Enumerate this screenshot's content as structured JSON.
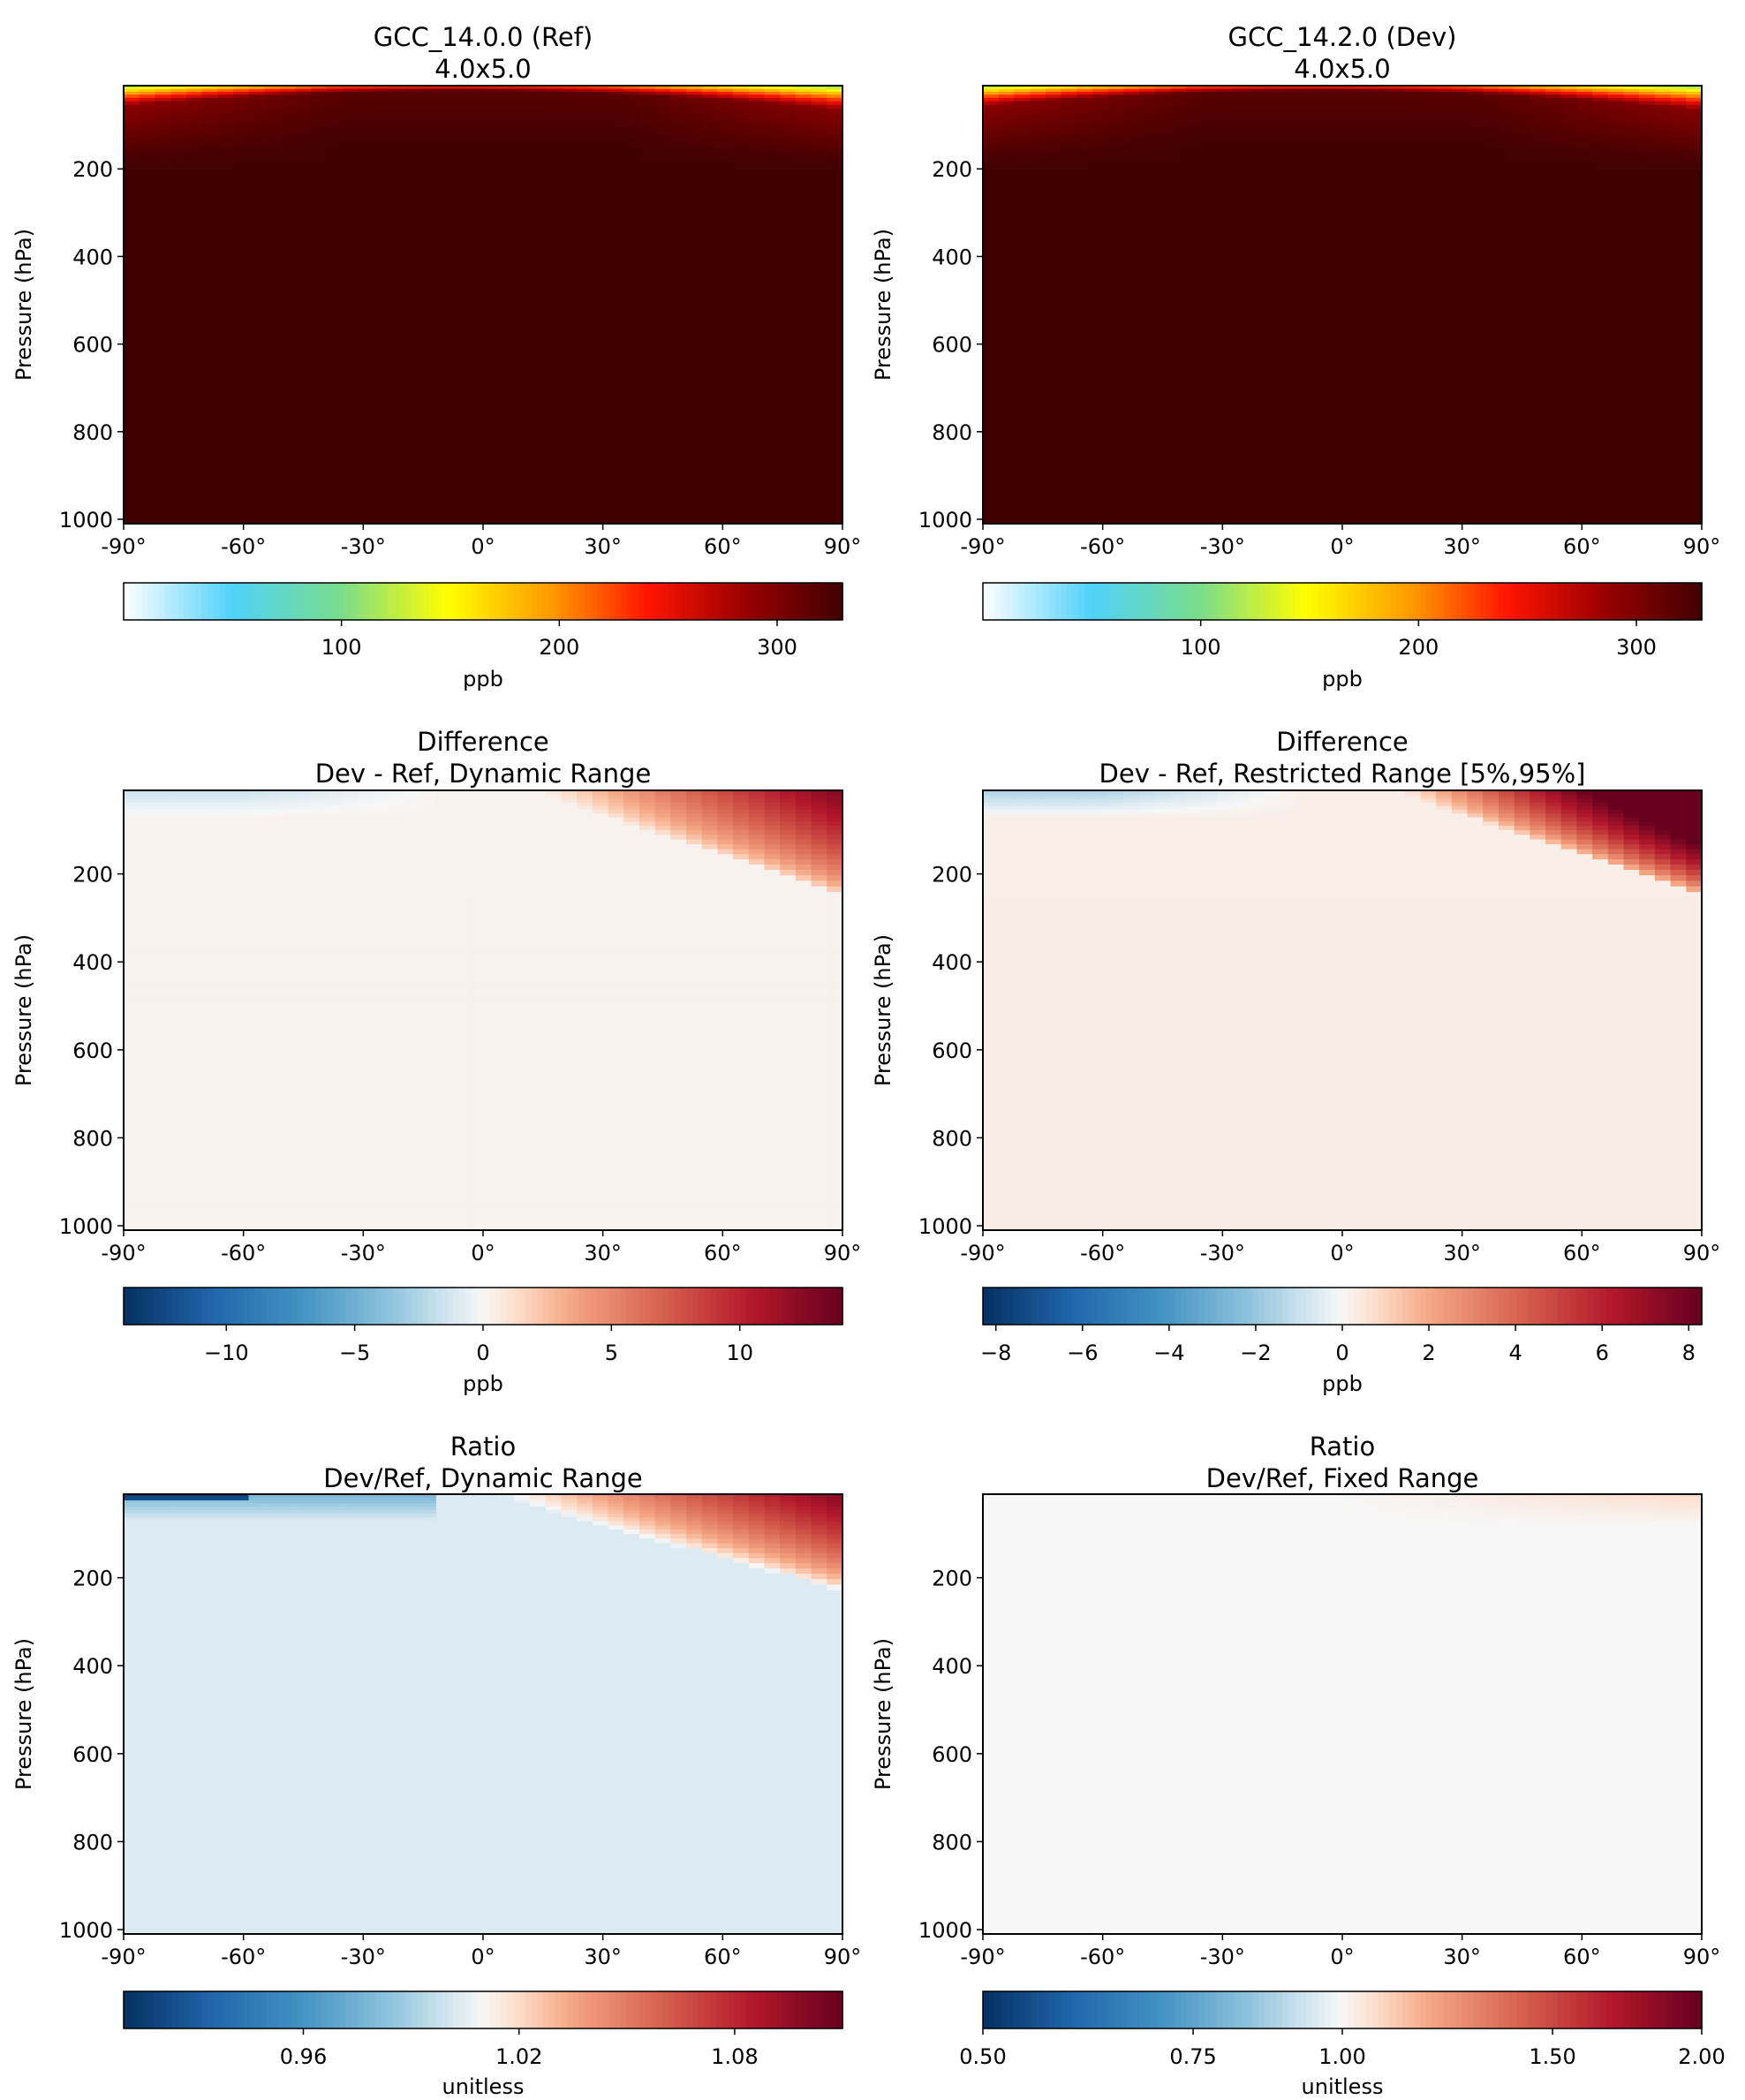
{
  "chart_data": [
    {
      "type": "heatmap",
      "title": "GCC_14.0.0 (Ref)",
      "subtitle": "4.0x5.0",
      "xlabel": "",
      "ylabel": "Pressure (hPa)",
      "x_ticks": [
        "-90°",
        "-60°",
        "-30°",
        "0°",
        "30°",
        "60°",
        "90°"
      ],
      "y_ticks": [
        "200",
        "400",
        "600",
        "800",
        "1000"
      ],
      "xlim": [
        -90,
        90
      ],
      "ylim": [
        1000,
        10
      ],
      "pattern": "conc",
      "colorbar": {
        "cmap": "wysiwyg",
        "label": "ppb",
        "range": [
          0,
          330
        ],
        "ticks": [
          {
            "value": 100,
            "label": "100"
          },
          {
            "value": 200,
            "label": "200"
          },
          {
            "value": 300,
            "label": "300"
          }
        ]
      }
    },
    {
      "type": "heatmap",
      "title": "GCC_14.2.0 (Dev)",
      "subtitle": "4.0x5.0",
      "xlabel": "",
      "ylabel": "Pressure (hPa)",
      "x_ticks": [
        "-90°",
        "-60°",
        "-30°",
        "0°",
        "30°",
        "60°",
        "90°"
      ],
      "y_ticks": [
        "200",
        "400",
        "600",
        "800",
        "1000"
      ],
      "xlim": [
        -90,
        90
      ],
      "ylim": [
        1000,
        10
      ],
      "pattern": "conc",
      "colorbar": {
        "cmap": "wysiwyg",
        "label": "ppb",
        "range": [
          0,
          330
        ],
        "ticks": [
          {
            "value": 100,
            "label": "100"
          },
          {
            "value": 200,
            "label": "200"
          },
          {
            "value": 300,
            "label": "300"
          }
        ]
      }
    },
    {
      "type": "heatmap",
      "title": "Difference",
      "subtitle": "Dev - Ref, Dynamic Range",
      "xlabel": "",
      "ylabel": "Pressure (hPa)",
      "x_ticks": [
        "-90°",
        "-60°",
        "-30°",
        "0°",
        "30°",
        "60°",
        "90°"
      ],
      "y_ticks": [
        "200",
        "400",
        "600",
        "800",
        "1000"
      ],
      "xlim": [
        -90,
        90
      ],
      "ylim": [
        1000,
        10
      ],
      "pattern": "diff",
      "colorbar": {
        "cmap": "RdBu_r",
        "label": "ppb",
        "range": [
          -14,
          14
        ],
        "ticks": [
          {
            "value": -10,
            "label": "−10"
          },
          {
            "value": -5,
            "label": "−5"
          },
          {
            "value": 0,
            "label": "0"
          },
          {
            "value": 5,
            "label": "5"
          },
          {
            "value": 10,
            "label": "10"
          }
        ]
      }
    },
    {
      "type": "heatmap",
      "title": "Difference",
      "subtitle": "Dev - Ref, Restricted Range [5%,95%]",
      "xlabel": "",
      "ylabel": "Pressure (hPa)",
      "x_ticks": [
        "-90°",
        "-60°",
        "-30°",
        "0°",
        "30°",
        "60°",
        "90°"
      ],
      "y_ticks": [
        "200",
        "400",
        "600",
        "800",
        "1000"
      ],
      "xlim": [
        -90,
        90
      ],
      "ylim": [
        1000,
        10
      ],
      "pattern": "diff_restricted",
      "colorbar": {
        "cmap": "RdBu_r",
        "label": "ppb",
        "range": [
          -8.3,
          8.3
        ],
        "ticks": [
          {
            "value": -8,
            "label": "−8"
          },
          {
            "value": -6,
            "label": "−6"
          },
          {
            "value": -4,
            "label": "−4"
          },
          {
            "value": -2,
            "label": "−2"
          },
          {
            "value": 0,
            "label": "0"
          },
          {
            "value": 2,
            "label": "2"
          },
          {
            "value": 4,
            "label": "4"
          },
          {
            "value": 6,
            "label": "6"
          },
          {
            "value": 8,
            "label": "8"
          }
        ]
      }
    },
    {
      "type": "heatmap",
      "title": "Ratio",
      "subtitle": "Dev/Ref, Dynamic Range",
      "xlabel": "",
      "ylabel": "Pressure (hPa)",
      "x_ticks": [
        "-90°",
        "-60°",
        "-30°",
        "0°",
        "30°",
        "60°",
        "90°"
      ],
      "y_ticks": [
        "200",
        "400",
        "600",
        "800",
        "1000"
      ],
      "xlim": [
        -90,
        90
      ],
      "ylim": [
        1000,
        10
      ],
      "pattern": "ratio",
      "colorbar": {
        "cmap": "RdBu_r",
        "label": "unitless",
        "range": [
          0.91,
          1.11
        ],
        "ticks": [
          {
            "value": 0.96,
            "label": "0.96"
          },
          {
            "value": 1.02,
            "label": "1.02"
          },
          {
            "value": 1.08,
            "label": "1.08"
          }
        ]
      }
    },
    {
      "type": "heatmap",
      "title": "Ratio",
      "subtitle": "Dev/Ref, Fixed Range",
      "xlabel": "",
      "ylabel": "Pressure (hPa)",
      "x_ticks": [
        "-90°",
        "-60°",
        "-30°",
        "0°",
        "30°",
        "60°",
        "90°"
      ],
      "y_ticks": [
        "200",
        "400",
        "600",
        "800",
        "1000"
      ],
      "xlim": [
        -90,
        90
      ],
      "ylim": [
        1000,
        10
      ],
      "pattern": "ratio_fixed",
      "colorbar": {
        "cmap": "RdBu_r",
        "label": "unitless",
        "range": [
          0.5,
          2.0
        ],
        "scale": "log",
        "ticks": [
          {
            "value": 0.5,
            "label": "0.50"
          },
          {
            "value": 0.75,
            "label": "0.75"
          },
          {
            "value": 1.0,
            "label": "1.00"
          },
          {
            "value": 1.5,
            "label": "1.50"
          },
          {
            "value": 2.0,
            "label": "2.00"
          }
        ]
      }
    }
  ]
}
